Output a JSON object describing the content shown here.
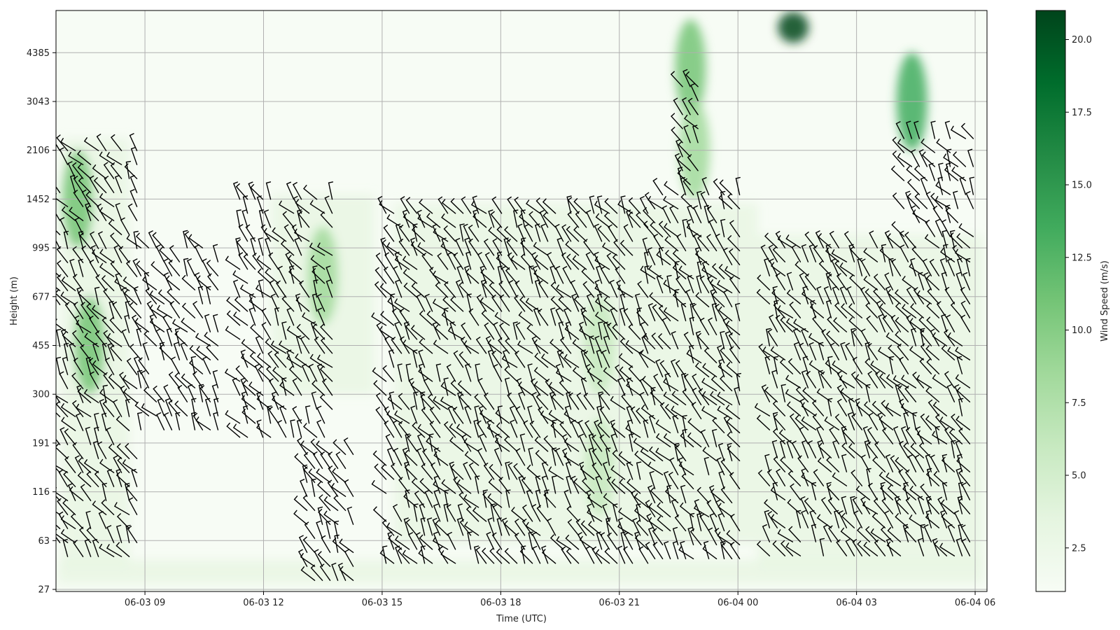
{
  "chart_data": {
    "type": "heatmap",
    "title": "",
    "xlabel": "Time (UTC)",
    "ylabel": "Height (m)",
    "x_ticks": [
      "06-03 09",
      "06-03 12",
      "06-03 15",
      "06-03 18",
      "06-03 21",
      "06-04 00",
      "06-04 03",
      "06-04 06"
    ],
    "x_tick_hours": [
      9,
      12,
      15,
      18,
      21,
      24,
      27,
      30
    ],
    "x_range_hours": [
      6.75,
      30.3
    ],
    "y_ticks": [
      "27",
      "63",
      "116",
      "191",
      "300",
      "455",
      "677",
      "995",
      "1452",
      "2106",
      "3043",
      "4385"
    ],
    "y_tick_values": [
      27,
      63,
      116,
      191,
      300,
      455,
      677,
      995,
      1452,
      2106,
      3043,
      4385
    ],
    "y_scale": "nonlinear (equally spaced levels)",
    "colorbar": {
      "label": "Wind Speed (m/s)",
      "ticks": [
        "2.5",
        "5.0",
        "7.5",
        "10.0",
        "12.5",
        "15.0",
        "17.5",
        "20.0"
      ],
      "tick_values": [
        2.5,
        5.0,
        7.5,
        10.0,
        12.5,
        15.0,
        17.5,
        20.0
      ],
      "range": [
        1.0,
        21.0
      ],
      "colormap": "Greens",
      "color_low": "#f7fcf5",
      "color_high": "#00441b"
    },
    "grid": true,
    "overlay": "wind barbs",
    "barb_color": "#000000",
    "high_wind_features": [
      {
        "time_hours": 7.3,
        "height_m": 1452,
        "speed": 12
      },
      {
        "time_hours": 7.6,
        "height_m": 455,
        "speed": 11
      },
      {
        "time_hours": 13.5,
        "height_m": 800,
        "speed": 9
      },
      {
        "time_hours": 22.8,
        "height_m": 3900,
        "speed": 12
      },
      {
        "time_hours": 22.9,
        "height_m": 2106,
        "speed": 8
      },
      {
        "time_hours": 25.4,
        "height_m": 5300,
        "speed": 20
      },
      {
        "time_hours": 28.4,
        "height_m": 3043,
        "speed": 13
      },
      {
        "time_hours": 20.5,
        "height_m": 455,
        "speed": 7
      },
      {
        "time_hours": 20.5,
        "height_m": 150,
        "speed": 6
      }
    ]
  }
}
